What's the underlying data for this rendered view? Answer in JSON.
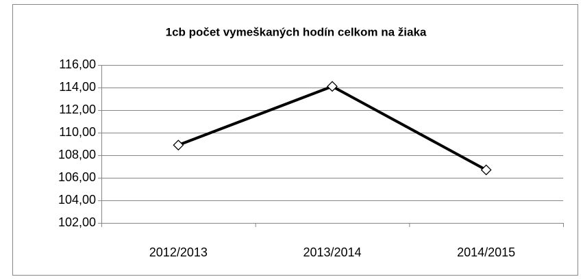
{
  "chart_data": {
    "type": "line",
    "title": "1cb počet vymeškaných hodín celkom na žiaka",
    "categories": [
      "2012/2013",
      "2013/2014",
      "2014/2015"
    ],
    "series": [
      {
        "name": "1cb",
        "color": "#000000",
        "values": [
          108.9,
          114.1,
          106.7
        ]
      }
    ],
    "ylim": [
      102,
      116
    ],
    "yticks": [
      {
        "value": 102,
        "label": "102,00"
      },
      {
        "value": 104,
        "label": "104,00"
      },
      {
        "value": 106,
        "label": "106,00"
      },
      {
        "value": 108,
        "label": "108,00"
      },
      {
        "value": 110,
        "label": "110,00"
      },
      {
        "value": 112,
        "label": "112,00"
      },
      {
        "value": 114,
        "label": "114,00"
      },
      {
        "value": 116,
        "label": "116,00"
      }
    ],
    "grid": true
  }
}
